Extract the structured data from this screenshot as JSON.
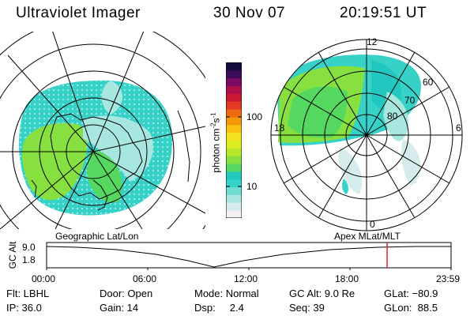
{
  "header": {
    "instrument": "Ultraviolet Imager",
    "date": "30 Nov 07",
    "time": "20:19:51 UT"
  },
  "colorbar": {
    "label_prefix": "photon cm",
    "label_exp1": "-2",
    "label_mid": "s",
    "label_exp2": "-1",
    "ticks": [
      "100",
      "10"
    ],
    "colors": [
      "#f2f2f2",
      "#d6ecec",
      "#a8e6e0",
      "#6fdcd0",
      "#36d2c8",
      "#22c8c0",
      "#55d860",
      "#88e040",
      "#b4e828",
      "#dcec20",
      "#f2e220",
      "#f8c010",
      "#f49808",
      "#ee6a10",
      "#e43a24",
      "#cc1830",
      "#b0104a",
      "#7a0a64",
      "#3c0c5c",
      "#140a3c"
    ]
  },
  "polar_labels": {
    "top": "12",
    "left": "18",
    "right": "6",
    "bottom": "0",
    "lat_60": "60",
    "lat_70": "70",
    "lat_80": "80"
  },
  "subtitles": {
    "geo": "Geographic Lat/Lon",
    "apex": "Apex MLat/MLT"
  },
  "altitude_plot": {
    "ylabel": "GC Alt",
    "y_ticks": [
      "9.0",
      "1.8"
    ],
    "x_ticks": [
      "00:00",
      "06:00",
      "12:00",
      "18:00",
      "23:59"
    ],
    "marker_color": "#dd2222"
  },
  "info": {
    "flt": "Flt: LBHL",
    "ip": "IP: 36.0",
    "door": "Door: Open",
    "gain": "Gain: 14",
    "mode": "Mode: Normal",
    "dsp": "Dsp:     2.4",
    "gcalt": "GC Alt: 9.0 Re",
    "seq": "Seq: 39",
    "glat": "GLat: −80.9",
    "glon": "GLon:  88.5"
  }
}
